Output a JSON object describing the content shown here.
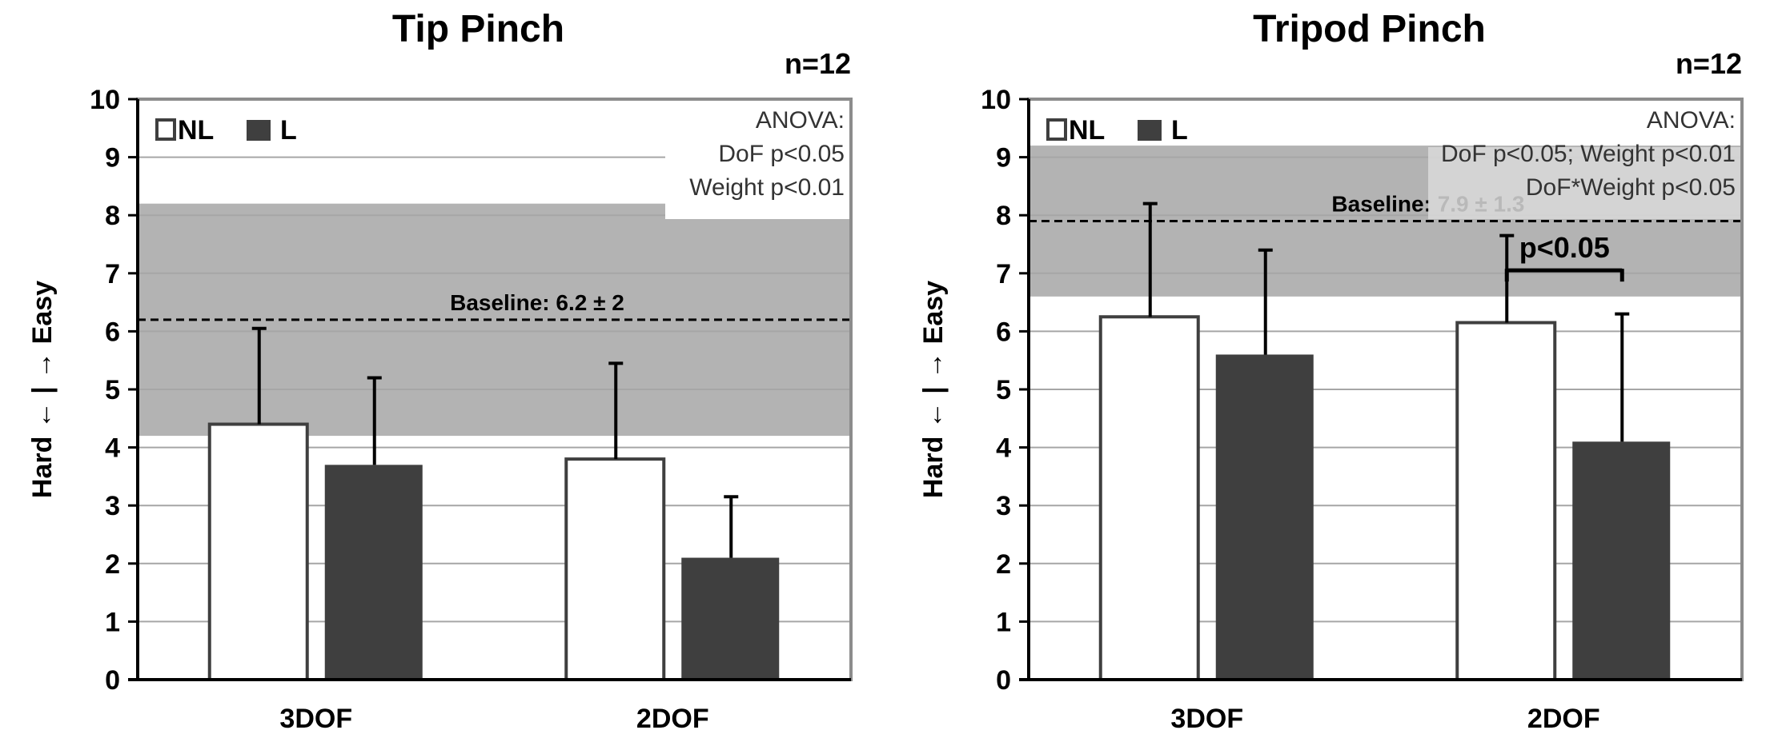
{
  "chart_data": [
    {
      "type": "bar",
      "title": "Tip Pinch",
      "n_label": "n=12",
      "ylabel": "Hard ← | → Easy",
      "xlabel": "",
      "ylim": [
        0,
        10
      ],
      "yticks": [
        "0",
        "1",
        "2",
        "3",
        "4",
        "5",
        "6",
        "7",
        "8",
        "9",
        "10"
      ],
      "categories": [
        "3DOF",
        "2DOF"
      ],
      "series": [
        {
          "name": "NL",
          "values": [
            4.4,
            3.8
          ],
          "errors": [
            1.65,
            1.65
          ],
          "color": "#ffffff"
        },
        {
          "name": "L",
          "values": [
            3.7,
            2.1
          ],
          "errors": [
            1.5,
            1.05
          ],
          "color": "#3f3f3f"
        }
      ],
      "baseline": {
        "label": "Baseline: 6.2 ± 2",
        "mean": 6.2,
        "sd": 2
      },
      "annotation": [
        "ANOVA:",
        "DoF p<0.05",
        "Weight p<0.01"
      ],
      "legend": "top-left"
    },
    {
      "type": "bar",
      "title": "Tripod Pinch",
      "n_label": "n=12",
      "ylabel": "Hard ← | → Easy",
      "xlabel": "",
      "ylim": [
        0,
        10
      ],
      "yticks": [
        "0",
        "1",
        "2",
        "3",
        "4",
        "5",
        "6",
        "7",
        "8",
        "9",
        "10"
      ],
      "categories": [
        "3DOF",
        "2DOF"
      ],
      "series": [
        {
          "name": "NL",
          "values": [
            6.25,
            6.15
          ],
          "errors": [
            1.95,
            1.5
          ],
          "color": "#ffffff"
        },
        {
          "name": "L",
          "values": [
            5.6,
            4.1
          ],
          "errors": [
            1.8,
            2.2
          ],
          "color": "#3f3f3f"
        }
      ],
      "baseline": {
        "label": "Baseline: 7.9 ± 1.3",
        "mean": 7.9,
        "sd": 1.3
      },
      "annotation": [
        "ANOVA:",
        "DoF p<0.05; Weight p<0.01",
        "DoF*Weight p<0.05"
      ],
      "significance": {
        "label": "p<0.05",
        "category": "2DOF"
      },
      "legend": "top-left"
    }
  ],
  "colors": {
    "band": "#b3b3b3",
    "dark_bar": "#3f3f3f",
    "grid": "#a6a6a6",
    "frame": "#8c8c8c"
  }
}
